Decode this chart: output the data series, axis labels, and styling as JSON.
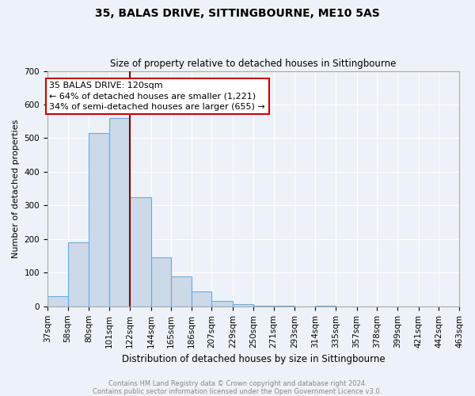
{
  "title": "35, BALAS DRIVE, SITTINGBOURNE, ME10 5AS",
  "subtitle": "Size of property relative to detached houses in Sittingbourne",
  "xlabel": "Distribution of detached houses by size in Sittingbourne",
  "ylabel": "Number of detached properties",
  "bar_color": "#ccd9e8",
  "bar_edge_color": "#6aabe0",
  "bg_color": "#edf2f8",
  "grid_color": "#ffffff",
  "annotation_text": "35 BALAS DRIVE: 120sqm\n← 64% of detached houses are smaller (1,221)\n34% of semi-detached houses are larger (655) →",
  "vline_x": 122,
  "vline_color": "#8b0000",
  "annotation_box_facecolor": "#ffffff",
  "annotation_box_edgecolor": "#cc0000",
  "bin_edges": [
    37,
    58,
    80,
    101,
    122,
    144,
    165,
    186,
    207,
    229,
    250,
    271,
    293,
    314,
    335,
    357,
    378,
    399,
    421,
    442,
    463
  ],
  "bin_counts": [
    30,
    190,
    515,
    560,
    325,
    145,
    90,
    45,
    15,
    7,
    3,
    1,
    0,
    1,
    0,
    0,
    0,
    0,
    0,
    0
  ],
  "ylim": [
    0,
    700
  ],
  "yticks": [
    0,
    100,
    200,
    300,
    400,
    500,
    600,
    700
  ],
  "footer_line1": "Contains HM Land Registry data © Crown copyright and database right 2024.",
  "footer_line2": "Contains public sector information licensed under the Open Government Licence v3.0.",
  "footer_color": "#888888",
  "title_fontsize": 10,
  "subtitle_fontsize": 8.5,
  "xlabel_fontsize": 8.5,
  "ylabel_fontsize": 8,
  "tick_fontsize": 7.5,
  "annotation_fontsize": 8
}
